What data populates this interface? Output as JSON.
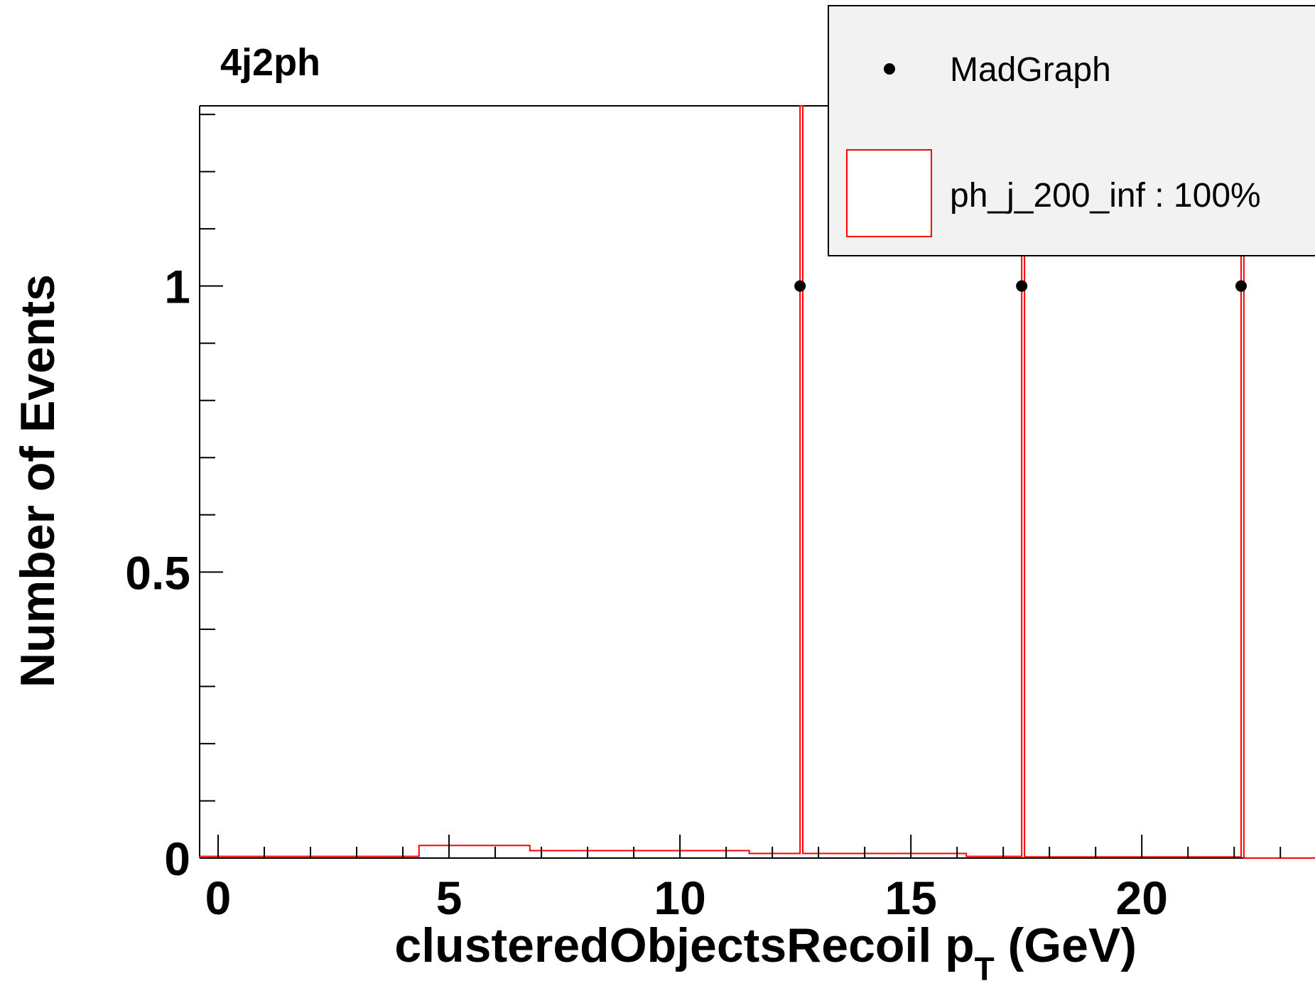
{
  "chart_data": {
    "type": "histogram",
    "title": "4j2ph",
    "xlabel": "clusteredObjectsRecoil p",
    "xlabel_subscript": "T",
    "xlabel_unit": " (GeV)",
    "ylabel": "Number of Events",
    "xlim": [
      -0.4,
      23.75
    ],
    "ylim": [
      0,
      1.315
    ],
    "x_ticks": [
      "0",
      "5",
      "10",
      "15",
      "20"
    ],
    "y_ticks": [
      "0",
      "0.5",
      "1"
    ],
    "legend_position": "top-right",
    "legend": [
      {
        "label": "MadGraph",
        "style": "marker"
      },
      {
        "label": "ph_j_200_inf : 100%",
        "style": "box"
      }
    ],
    "series": [
      {
        "name": "MadGraph",
        "style": "points",
        "color": "#000000",
        "points": [
          {
            "x": 12.6,
            "y": 1
          },
          {
            "x": 17.4,
            "y": 1
          },
          {
            "x": 22.15,
            "y": 1
          }
        ]
      },
      {
        "name": "ph_j_200_inf : 100%",
        "style": "step",
        "color": "#ff0000",
        "bins": [
          {
            "x0": -0.4,
            "x1": 4.35,
            "y": 0.003
          },
          {
            "x0": 4.35,
            "x1": 6.75,
            "y": 0.022
          },
          {
            "x0": 6.75,
            "x1": 11.5,
            "y": 0.013
          },
          {
            "x0": 11.5,
            "x1": 12.6,
            "y": 0.008
          },
          {
            "x0": 12.6,
            "x1": 12.66,
            "y": 1.315
          },
          {
            "x0": 12.66,
            "x1": 16.2,
            "y": 0.008
          },
          {
            "x0": 16.2,
            "x1": 17.4,
            "y": 0.003
          },
          {
            "x0": 17.4,
            "x1": 17.46,
            "y": 1.315
          },
          {
            "x0": 17.46,
            "x1": 22.15,
            "y": 0.002
          },
          {
            "x0": 22.15,
            "x1": 22.21,
            "y": 1.315
          },
          {
            "x0": 22.21,
            "x1": 23.75,
            "y": 0.0
          }
        ]
      }
    ]
  }
}
